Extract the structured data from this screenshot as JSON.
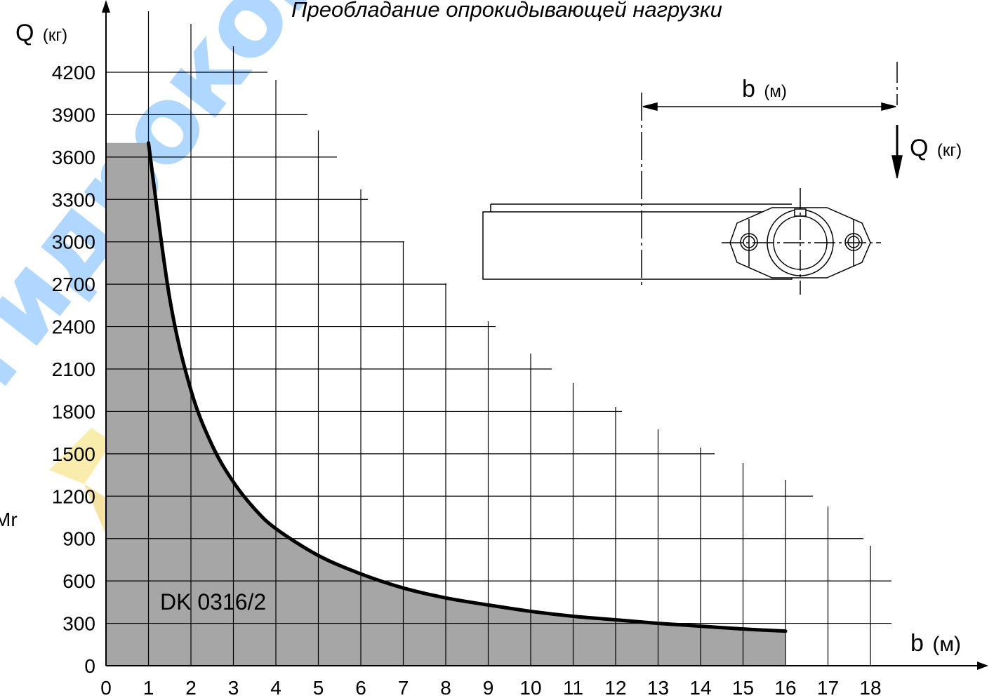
{
  "chart_data": {
    "type": "area",
    "title": "Преобладание опрокидывающей нагрузки",
    "xlabel": {
      "main": "b",
      "unit": "(м)"
    },
    "ylabel": {
      "main": "Q",
      "unit": "(кг)"
    },
    "xlim": [
      0,
      18
    ],
    "ylim": [
      0,
      4200
    ],
    "xticks": [
      "0",
      "1",
      "2",
      "3",
      "4",
      "5",
      "6",
      "7",
      "8",
      "9",
      "10",
      "11",
      "12",
      "13",
      "14",
      "15",
      "16",
      "17",
      "18"
    ],
    "yticks": [
      "0",
      "300",
      "600",
      "900",
      "1200",
      "1500",
      "1800",
      "2100",
      "2400",
      "2700",
      "3000",
      "3300",
      "3600",
      "3900",
      "4200"
    ],
    "grid": true,
    "series": [
      {
        "name": "DK 0316/2",
        "color": "#000000",
        "fill": "#a6a6a6",
        "x": [
          0,
          1,
          1.5,
          2,
          2.5,
          3,
          3.5,
          4,
          5,
          6,
          7,
          8,
          9,
          10,
          11,
          12,
          13,
          14,
          15,
          16
        ],
        "y": [
          3700,
          3700,
          2600,
          1950,
          1560,
          1300,
          1110,
          970,
          780,
          650,
          550,
          480,
          430,
          385,
          350,
          325,
          300,
          280,
          260,
          245
        ]
      }
    ],
    "annotations": [
      {
        "text": "Mr"
      }
    ]
  },
  "inset": {
    "b_label": "b",
    "b_unit": "(м)",
    "q_label": "Q",
    "q_unit": "(кг)"
  },
  "watermark": {
    "text": "гидрокомпонент",
    "color": "#1e90ff"
  }
}
